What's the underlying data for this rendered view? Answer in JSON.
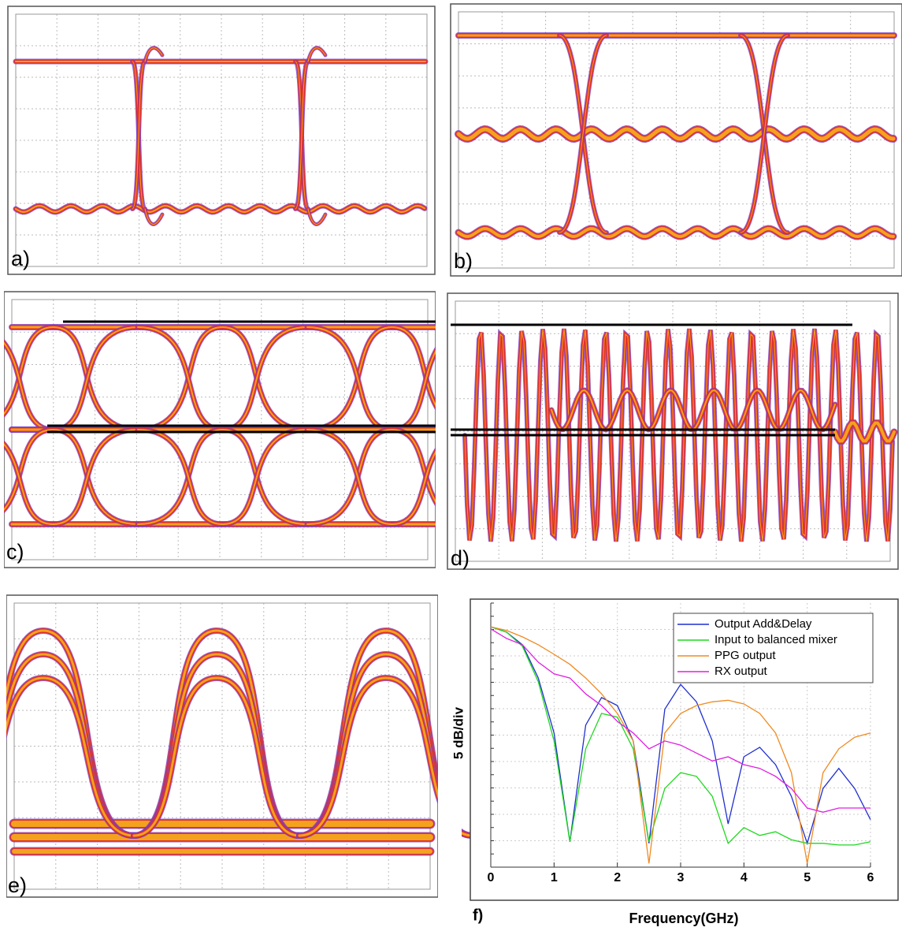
{
  "panels": [
    {
      "label": "a)"
    },
    {
      "label": "b)"
    },
    {
      "label": "c)"
    },
    {
      "label": "d)"
    },
    {
      "label": "e)"
    }
  ],
  "chart_data": {
    "type": "line",
    "panel_label": "f)",
    "ylabel": "5 dB/div",
    "xlabel": "Frequency(GHz)",
    "x": [
      0,
      0.25,
      0.5,
      0.75,
      1,
      1.25,
      1.5,
      1.75,
      2,
      2.25,
      2.5,
      2.75,
      3,
      3.25,
      3.5,
      3.75,
      4,
      4.25,
      4.5,
      4.75,
      5,
      5.25,
      5.5,
      5.75,
      6
    ],
    "xlim": [
      0,
      6
    ],
    "xticks": [
      0,
      1,
      2,
      3,
      4,
      5,
      6
    ],
    "ylim": [
      -50,
      0
    ],
    "legend": "upper right",
    "series": [
      {
        "name": "Output Add&Delay",
        "color": "#1f2fd0",
        "values": [
          -4.5,
          -5.5,
          -7.9,
          -14.2,
          -24.6,
          -45.2,
          -23.1,
          -17.9,
          -19.4,
          -26.1,
          -45.5,
          -20.1,
          -15.4,
          -18.7,
          -26.1,
          -41.8,
          -29.1,
          -27.3,
          -30.6,
          -36.6,
          -45.5,
          -35.1,
          -31.3,
          -35.1,
          -41.0
        ]
      },
      {
        "name": "Input to balanced mixer",
        "color": "#1ed81e",
        "values": [
          -4.5,
          -5.5,
          -8.2,
          -14.9,
          -26.1,
          -45.2,
          -27.6,
          -20.9,
          -21.6,
          -27.6,
          -45.2,
          -35.1,
          -32.1,
          -32.8,
          -36.6,
          -45.5,
          -42.5,
          -44.0,
          -43.3,
          -44.8,
          -45.5,
          -45.5,
          -45.8,
          -45.8,
          -45.2
        ]
      },
      {
        "name": "PPG output",
        "color": "#f08a20",
        "values": [
          -4.5,
          -5.2,
          -6.4,
          -7.9,
          -9.7,
          -11.6,
          -14.2,
          -17.2,
          -20.9,
          -26.1,
          -49.3,
          -24.6,
          -20.9,
          -19.4,
          -18.7,
          -18.4,
          -19.1,
          -20.9,
          -24.6,
          -32.1,
          -49.3,
          -32.1,
          -27.6,
          -25.4,
          -24.6
        ]
      },
      {
        "name": "RX output",
        "color": "#e020e0",
        "values": [
          -4.9,
          -6.7,
          -7.9,
          -11.2,
          -13.4,
          -14.2,
          -17.2,
          -19.4,
          -22.4,
          -24.6,
          -27.6,
          -26.1,
          -26.9,
          -28.4,
          -29.9,
          -29.1,
          -30.6,
          -31.3,
          -32.8,
          -35.1,
          -38.8,
          -39.6,
          -38.8,
          -38.8,
          -38.8
        ]
      }
    ]
  }
}
